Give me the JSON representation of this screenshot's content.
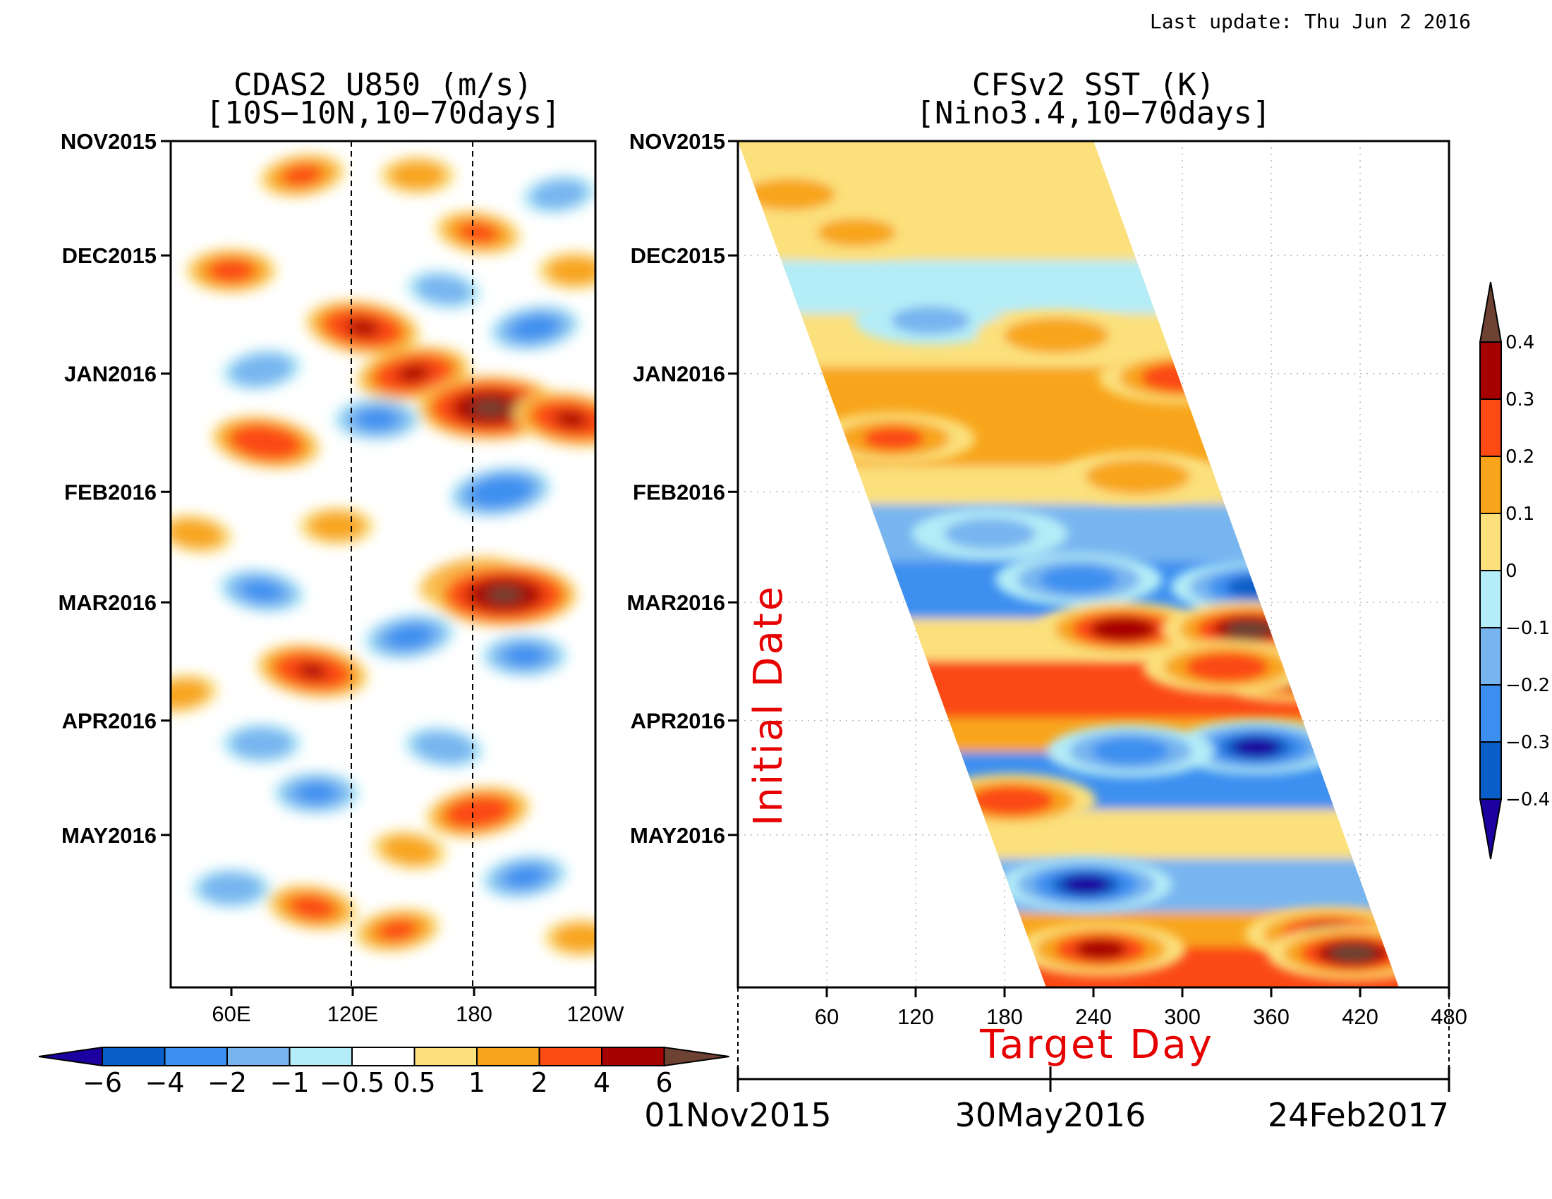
{
  "last_update": "Last update: Thu Jun 2 2016",
  "palette": [
    "#1c00a0",
    "#0a5ec8",
    "#3c8ff0",
    "#78b5f0",
    "#b4ecf7",
    "#ffffff",
    "#fbe07c",
    "#f8a51c",
    "#fb4a14",
    "#a70000",
    "#6e4232"
  ],
  "chart_data": [
    {
      "type": "heatmap",
      "title": "CDAS2 U850 (m/s)",
      "subtitle": "[10S−10N,10−70days]",
      "y_ticks": [
        "NOV2015",
        "DEC2015",
        "JAN2016",
        "FEB2016",
        "MAR2016",
        "APR2016",
        "MAY2016"
      ],
      "x_ticks": [
        "60E",
        "120E",
        "180",
        "120W"
      ],
      "x_ref_lines": [
        "120E",
        "180"
      ],
      "colorbar": {
        "orientation": "horizontal",
        "labels": [
          "−6",
          "−4",
          "−2",
          "−1",
          "−0.5",
          "0.5",
          "1",
          "2",
          "4",
          "6"
        ],
        "levels": [
          -6,
          -4,
          -2,
          -1,
          -0.5,
          0.5,
          1,
          2,
          4,
          6
        ]
      },
      "anomalies": [
        {
          "lon": 95,
          "date": "2015-11-10",
          "value": 2.2
        },
        {
          "lon": 152,
          "date": "2015-11-10",
          "value": 1.5
        },
        {
          "lon": 182,
          "date": "2015-11-25",
          "value": 2.2
        },
        {
          "lon": 222,
          "date": "2015-11-15",
          "value": -1.5
        },
        {
          "lon": 60,
          "date": "2015-12-05",
          "value": 2.5
        },
        {
          "lon": 165,
          "date": "2015-12-10",
          "value": -1.5
        },
        {
          "lon": 210,
          "date": "2015-12-20",
          "value": -2.5
        },
        {
          "lon": 230,
          "date": "2015-12-05",
          "value": 1.5
        },
        {
          "lon": 125,
          "date": "2015-12-20",
          "value": 4.2
        },
        {
          "lon": 150,
          "date": "2016-01-01",
          "value": 4.2
        },
        {
          "lon": 188,
          "date": "2016-01-10",
          "value": 6.5
        },
        {
          "lon": 228,
          "date": "2016-01-13",
          "value": 4.2
        },
        {
          "lon": 75,
          "date": "2015-12-31",
          "value": -1.8
        },
        {
          "lon": 132,
          "date": "2016-01-13",
          "value": -2.2
        },
        {
          "lon": 77,
          "date": "2016-01-19",
          "value": 3.8
        },
        {
          "lon": 193,
          "date": "2016-02-01",
          "value": -3.3
        },
        {
          "lon": 112,
          "date": "2016-02-10",
          "value": 1.5
        },
        {
          "lon": 42,
          "date": "2016-02-12",
          "value": 1.5
        },
        {
          "lon": 180,
          "date": "2016-02-25",
          "value": 4.0
        },
        {
          "lon": 195,
          "date": "2016-02-28",
          "value": 6.5
        },
        {
          "lon": 75,
          "date": "2016-02-27",
          "value": -2.2
        },
        {
          "lon": 148,
          "date": "2016-03-10",
          "value": -2.5
        },
        {
          "lon": 205,
          "date": "2016-03-15",
          "value": -2.2
        },
        {
          "lon": 100,
          "date": "2016-03-19",
          "value": 4.0
        },
        {
          "lon": 35,
          "date": "2016-03-25",
          "value": 1.5
        },
        {
          "lon": 75,
          "date": "2016-04-07",
          "value": -1.8
        },
        {
          "lon": 165,
          "date": "2016-04-08",
          "value": -1.8
        },
        {
          "lon": 182,
          "date": "2016-04-25",
          "value": 3.5
        },
        {
          "lon": 102,
          "date": "2016-04-20",
          "value": -2.2
        },
        {
          "lon": 148,
          "date": "2016-05-05",
          "value": 1.5
        },
        {
          "lon": 205,
          "date": "2016-05-12",
          "value": -2.2
        },
        {
          "lon": 60,
          "date": "2016-05-15",
          "value": -1.8
        },
        {
          "lon": 100,
          "date": "2016-05-20",
          "value": 2.5
        },
        {
          "lon": 142,
          "date": "2016-05-26",
          "value": 2.2
        },
        {
          "lon": 233,
          "date": "2016-05-28",
          "value": 1.5
        }
      ]
    },
    {
      "type": "heatmap",
      "title": "CFSv2 SST (K)",
      "subtitle": "[Nino3.4,10−70days]",
      "y_ticks": [
        "NOV2015",
        "DEC2015",
        "JAN2016",
        "FEB2016",
        "MAR2016",
        "APR2016",
        "MAY2016"
      ],
      "x_ticks": [
        60,
        120,
        180,
        240,
        300,
        360,
        420,
        480
      ],
      "xlabel": "Target Day",
      "ylabel": "Initial Date",
      "date_axis": [
        "01Nov2015",
        "30May2016",
        "24Feb2017"
      ],
      "colorbar": {
        "orientation": "vertical",
        "labels": [
          "0.4",
          "0.3",
          "0.2",
          "0.1",
          "0",
          "−0.1",
          "−0.2",
          "−0.3",
          "−0.4"
        ],
        "levels": [
          0.4,
          0.3,
          0.2,
          0.1,
          0,
          -0.1,
          -0.2,
          -0.3,
          -0.4
        ]
      },
      "bands": [
        {
          "date": "2015-11-01",
          "value": 0.05
        },
        {
          "date": "2015-11-18",
          "value": 0.03
        },
        {
          "date": "2015-12-03",
          "value": -0.05
        },
        {
          "date": "2015-12-17",
          "value": 0.07
        },
        {
          "date": "2015-12-31",
          "value": 0.18
        },
        {
          "date": "2016-01-12",
          "value": 0.1
        },
        {
          "date": "2016-01-26",
          "value": 0.03
        },
        {
          "date": "2016-02-05",
          "value": -0.12
        },
        {
          "date": "2016-02-20",
          "value": -0.25
        },
        {
          "date": "2016-03-06",
          "value": 0.08
        },
        {
          "date": "2016-03-17",
          "value": 0.28
        },
        {
          "date": "2016-04-01",
          "value": 0.15
        },
        {
          "date": "2016-04-10",
          "value": -0.25
        },
        {
          "date": "2016-04-25",
          "value": 0.05
        },
        {
          "date": "2016-05-08",
          "value": -0.12
        },
        {
          "date": "2016-05-22",
          "value": 0.12
        },
        {
          "date": "2016-05-31",
          "value": 0.25
        }
      ],
      "anomalies": [
        {
          "day": 35,
          "date": "2015-11-15",
          "value": 0.18
        },
        {
          "day": 80,
          "date": "2015-11-25",
          "value": 0.15
        },
        {
          "day": 130,
          "date": "2015-12-18",
          "value": -0.15
        },
        {
          "day": 215,
          "date": "2015-12-22",
          "value": 0.22
        },
        {
          "day": 300,
          "date": "2016-01-02",
          "value": 0.32
        },
        {
          "day": 105,
          "date": "2016-01-18",
          "value": 0.25
        },
        {
          "day": 270,
          "date": "2016-01-28",
          "value": 0.22
        },
        {
          "day": 170,
          "date": "2016-02-12",
          "value": -0.18
        },
        {
          "day": 230,
          "date": "2016-02-24",
          "value": -0.3
        },
        {
          "day": 350,
          "date": "2016-02-26",
          "value": -0.38
        },
        {
          "day": 260,
          "date": "2016-03-08",
          "value": 0.4
        },
        {
          "day": 345,
          "date": "2016-03-08",
          "value": 0.42
        },
        {
          "day": 375,
          "date": "2016-03-20",
          "value": 0.45
        },
        {
          "day": 330,
          "date": "2016-03-18",
          "value": 0.32
        },
        {
          "day": 350,
          "date": "2016-04-08",
          "value": -0.42
        },
        {
          "day": 265,
          "date": "2016-04-09",
          "value": -0.3
        },
        {
          "day": 185,
          "date": "2016-04-22",
          "value": 0.32
        },
        {
          "day": 235,
          "date": "2016-05-14",
          "value": -0.42
        },
        {
          "day": 245,
          "date": "2016-05-31",
          "value": 0.35
        },
        {
          "day": 400,
          "date": "2016-05-27",
          "value": 0.38
        },
        {
          "day": 415,
          "date": "2016-06-01",
          "value": 0.42
        }
      ]
    }
  ]
}
